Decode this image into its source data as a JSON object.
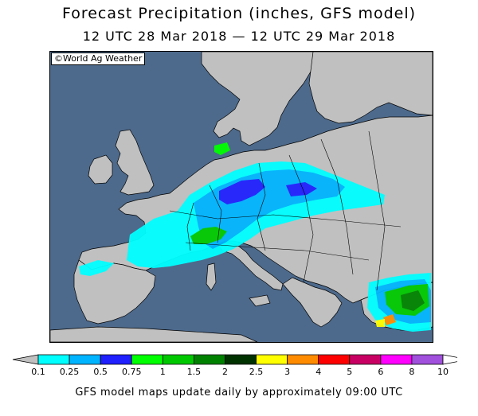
{
  "title": "Forecast Precipitation (inches, GFS model)",
  "subtitle": "12 UTC 28 Mar 2018 — 12 UTC 29 Mar 2018",
  "copyright": "©World Ag Weather",
  "footer": "GFS model maps update daily by approximately 09:00 UTC",
  "colors": {
    "sea": "#4d6a8c",
    "land": "#c0c0c0",
    "border": "#000000"
  },
  "legend": {
    "ticks": [
      "0.1",
      "0.25",
      "0.5",
      "0.75",
      "1",
      "1.5",
      "2",
      "2.5",
      "3",
      "4",
      "5",
      "6",
      "8",
      "10"
    ],
    "colors": [
      "#00ffff",
      "#00b4ff",
      "#2020ff",
      "#00ff00",
      "#00c800",
      "#008200",
      "#003200",
      "#ffff00",
      "#ff8c00",
      "#ff0000",
      "#c80064",
      "#ff00ff",
      "#a050dc"
    ],
    "below_color": "#c0c0c0",
    "above_color": "#ffffff"
  }
}
